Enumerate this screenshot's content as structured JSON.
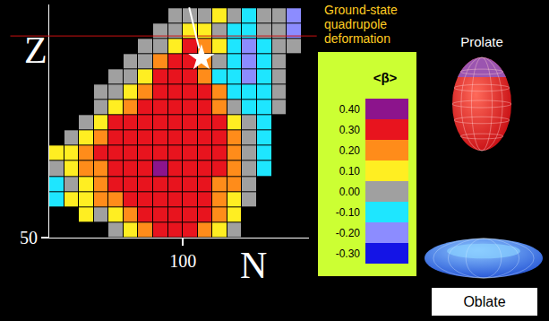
{
  "chart_data": {
    "type": "heatmap",
    "title": "Ground-state quadrupole deformation",
    "xlabel": "N",
    "ylabel": "Z",
    "x": [
      66,
      70,
      74,
      78,
      82,
      86,
      90,
      94,
      98,
      102,
      106,
      110,
      114,
      118,
      122,
      126,
      130
    ],
    "y": [
      52,
      56,
      60,
      64,
      68,
      72,
      76,
      80,
      84,
      88,
      92,
      96,
      100,
      104,
      108
    ],
    "z": [
      [
        null,
        null,
        null,
        null,
        0.0,
        0.1,
        0.2,
        0.3,
        0.3,
        0.3,
        0.2,
        0.1,
        0.0,
        null,
        null,
        null,
        null
      ],
      [
        null,
        null,
        0.1,
        0.0,
        0.1,
        0.2,
        0.3,
        0.3,
        0.3,
        0.3,
        0.3,
        0.2,
        0.1,
        null,
        null,
        null,
        null
      ],
      [
        -0.1,
        0.1,
        0.1,
        0.2,
        0.2,
        0.3,
        0.3,
        0.3,
        0.3,
        0.3,
        0.3,
        0.2,
        0.1,
        0.0,
        null,
        null,
        null
      ],
      [
        -0.1,
        0.0,
        0.1,
        0.2,
        0.3,
        0.3,
        0.3,
        0.3,
        0.3,
        0.3,
        0.3,
        0.2,
        0.2,
        0.0,
        null,
        null,
        null
      ],
      [
        0.0,
        0.1,
        0.2,
        0.2,
        0.3,
        0.3,
        0.3,
        0.4,
        0.3,
        0.3,
        0.3,
        0.3,
        0.2,
        0.0,
        -0.1,
        null,
        null
      ],
      [
        0.1,
        0.1,
        0.2,
        0.3,
        0.3,
        0.3,
        0.3,
        0.3,
        0.3,
        0.3,
        0.3,
        0.3,
        0.2,
        0.0,
        -0.1,
        null,
        null
      ],
      [
        null,
        0.0,
        0.1,
        0.2,
        0.3,
        0.3,
        0.3,
        0.3,
        0.3,
        0.3,
        0.3,
        0.3,
        0.2,
        0.0,
        -0.1,
        null,
        null
      ],
      [
        null,
        null,
        0.0,
        0.1,
        0.3,
        0.3,
        0.3,
        0.3,
        0.3,
        0.3,
        0.3,
        0.3,
        0.1,
        0.0,
        -0.1,
        null,
        null
      ],
      [
        null,
        null,
        null,
        0.0,
        0.1,
        0.2,
        0.3,
        0.3,
        0.3,
        0.3,
        0.3,
        0.2,
        0.0,
        -0.1,
        -0.1,
        0.0,
        null
      ],
      [
        null,
        null,
        null,
        0.0,
        0.0,
        0.1,
        0.2,
        0.3,
        0.3,
        0.3,
        0.3,
        0.2,
        -0.1,
        -0.1,
        -0.1,
        0.0,
        null
      ],
      [
        null,
        null,
        null,
        null,
        0.0,
        0.0,
        0.1,
        0.3,
        0.3,
        0.3,
        0.2,
        -0.1,
        -0.1,
        -0.2,
        -0.1,
        0.0,
        null
      ],
      [
        null,
        null,
        null,
        null,
        null,
        0.0,
        0.0,
        0.2,
        0.3,
        0.3,
        0.2,
        0.0,
        -0.1,
        -0.2,
        -0.1,
        0.0,
        null
      ],
      [
        null,
        null,
        null,
        null,
        null,
        null,
        0.0,
        0.0,
        0.1,
        0.3,
        0.2,
        0.1,
        -0.1,
        -0.2,
        -0.1,
        0.0,
        0.0
      ],
      [
        null,
        null,
        null,
        null,
        null,
        null,
        null,
        0.0,
        0.0,
        0.1,
        0.1,
        0.0,
        -0.1,
        -0.1,
        0.0,
        0.0,
        -0.2
      ],
      [
        null,
        null,
        null,
        null,
        null,
        null,
        null,
        null,
        0.0,
        0.0,
        0.0,
        0.1,
        0.0,
        -0.1,
        0.0,
        0.0,
        -0.2
      ]
    ],
    "xlim": [
      64,
      134
    ],
    "ylim": [
      50,
      111
    ],
    "xticks": [
      100
    ],
    "yticks": [
      50
    ],
    "grid": false,
    "colorbar": {
      "title": "<β>",
      "range": [
        -0.35,
        0.45
      ],
      "ticks": [
        {
          "value": -0.3,
          "label": "-0.30"
        },
        {
          "value": -0.2,
          "label": "-0.20"
        },
        {
          "value": -0.1,
          "label": "-0.10"
        },
        {
          "value": 0.0,
          "label": "0.00"
        },
        {
          "value": 0.1,
          "label": "0.10"
        },
        {
          "value": 0.2,
          "label": "0.20"
        },
        {
          "value": 0.3,
          "label": "0.30"
        },
        {
          "value": 0.4,
          "label": "0.40"
        }
      ],
      "colors": [
        "#1414e6",
        "#8c8cff",
        "#1ee6ff",
        "#a0a0a0",
        "#ffee22",
        "#ff8c1a",
        "#e8141e",
        "#8c148c"
      ]
    },
    "points": [
      {
        "x": 105,
        "y": 97,
        "marker": "star",
        "color": "#ffffff"
      }
    ],
    "annotations": [
      {
        "text": "Prolate"
      },
      {
        "text": "Oblate"
      }
    ]
  }
}
